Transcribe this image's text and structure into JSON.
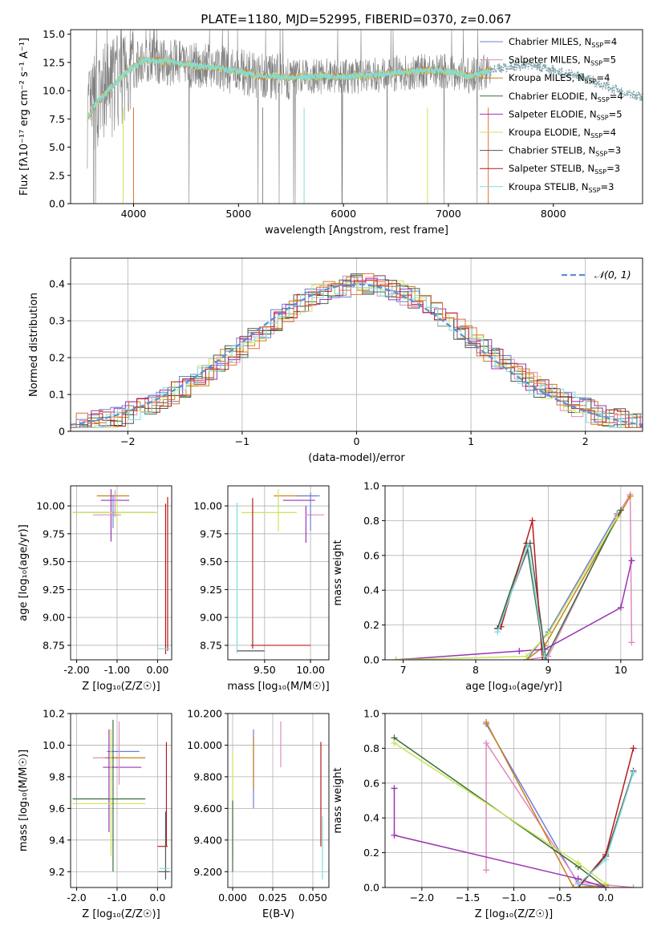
{
  "title": "PLATE=1180, MJD=52995, FIBERID=0370, z=0.067",
  "legend_models": [
    {
      "base": "Chabrier MILES, N",
      "sub": "SSP",
      "suffix": "=4",
      "color": "#6e7fd6"
    },
    {
      "base": "Salpeter MILES, N",
      "sub": "SSP",
      "suffix": "=5",
      "color": "#e08bbf"
    },
    {
      "base": "Kroupa MILES, N",
      "sub": "SSP",
      "suffix": "=4",
      "color": "#c8821a"
    },
    {
      "base": "Chabrier ELODIE, N",
      "sub": "SSP",
      "suffix": "=4",
      "color": "#3c6e3c"
    },
    {
      "base": "Salpeter ELODIE, N",
      "sub": "SSP",
      "suffix": "=5",
      "color": "#9b35b5"
    },
    {
      "base": "Kroupa ELODIE, N",
      "sub": "SSP",
      "suffix": "=4",
      "color": "#c8e65a"
    },
    {
      "base": "Chabrier STELIB, N",
      "sub": "SSP",
      "suffix": "=3",
      "color": "#555555"
    },
    {
      "base": "Salpeter STELIB, N",
      "sub": "SSP",
      "suffix": "=3",
      "color": "#b51c1c"
    },
    {
      "base": "Kroupa STELIB, N",
      "sub": "SSP",
      "suffix": "=3",
      "color": "#80dde0"
    }
  ],
  "chart_data": [
    {
      "type": "line",
      "panel": "spectrum",
      "xlabel": "wavelength [Angstrom, rest frame]",
      "ylabel": "Flux [fλ10⁻¹⁷ erg cm⁻² s⁻¹ A⁻¹]",
      "xlim": [
        3400,
        8850
      ],
      "ylim": [
        0,
        15.4
      ],
      "xticks": [
        4000,
        5000,
        6000,
        7000,
        8000
      ],
      "yticks": [
        0.0,
        2.5,
        5.0,
        7.5,
        10.0,
        12.5,
        15.0
      ],
      "data_color": "#808080",
      "model_color": "#80dde0",
      "continuum": [
        [
          3560,
          7.6
        ],
        [
          3650,
          9.0
        ],
        [
          3800,
          10.4
        ],
        [
          3950,
          11.8
        ],
        [
          4100,
          12.7
        ],
        [
          4300,
          12.6
        ],
        [
          4500,
          12.3
        ],
        [
          4800,
          12.0
        ],
        [
          5000,
          11.7
        ],
        [
          5200,
          11.3
        ],
        [
          5500,
          11.2
        ],
        [
          5800,
          11.3
        ],
        [
          6000,
          11.2
        ],
        [
          6300,
          11.4
        ],
        [
          6560,
          11.6
        ],
        [
          6800,
          11.8
        ],
        [
          7000,
          11.7
        ],
        [
          7200,
          11.3
        ],
        [
          7500,
          12.0
        ],
        [
          7800,
          12.3
        ],
        [
          8000,
          11.8
        ],
        [
          8200,
          11.4
        ],
        [
          8400,
          10.8
        ],
        [
          8600,
          10.1
        ],
        [
          8800,
          9.5
        ]
      ],
      "legend_position": "upper-right"
    },
    {
      "type": "line",
      "panel": "residuals",
      "xlabel": "(data-model)/error",
      "ylabel": "Normed distribution",
      "xlim": [
        -2.5,
        2.5
      ],
      "ylim": [
        0,
        0.47
      ],
      "xticks": [
        -2,
        -1,
        0,
        1,
        2
      ],
      "yticks": [
        0.0,
        0.1,
        0.2,
        0.3,
        0.4
      ],
      "gaussian_label": "𝒩(0, 1)",
      "gaussian_color": "#5b8ed6",
      "grid": true,
      "legend_position": "upper-right"
    },
    {
      "type": "scatter",
      "panel": "age-vs-Z",
      "xlabel": "Z [log₁₀(Z/Z☉)]",
      "ylabel": "age  [log₁₀(age/yr)]",
      "xlim": [
        -2.15,
        0.35
      ],
      "ylim": [
        8.62,
        10.18
      ],
      "xticks": [
        -2,
        -1,
        0
      ],
      "yticks": [
        8.75,
        9.0,
        9.25,
        9.5,
        9.75,
        10.0
      ],
      "grid": true
    },
    {
      "type": "scatter",
      "panel": "age-vs-mass",
      "xlabel": "mass [log₁₀(M/M☉)]",
      "xlim": [
        9.1,
        10.2
      ],
      "ylim": [
        8.62,
        10.18
      ],
      "xticks": [
        9.5,
        10.0
      ],
      "yticks": [
        8.75,
        9.0,
        9.25,
        9.5,
        9.75,
        10.0
      ],
      "grid": true
    },
    {
      "type": "line",
      "panel": "weight-vs-age",
      "xlabel": "age  [log₁₀(age/yr)]",
      "ylabel": "mass weight",
      "xlim": [
        6.75,
        10.3
      ],
      "ylim": [
        0,
        1.0
      ],
      "xticks": [
        7,
        8,
        9,
        10
      ],
      "yticks": [
        0.0,
        0.2,
        0.4,
        0.6,
        0.8,
        1.0
      ],
      "grid": true,
      "series": [
        {
          "color": "#6e7fd6",
          "points": [
            [
              8.7,
              0.0
            ],
            [
              9.0,
              0.16
            ],
            [
              9.95,
              0.84
            ]
          ]
        },
        {
          "color": "#e08bbf",
          "points": [
            [
              8.7,
              0.0
            ],
            [
              9.0,
              0.02
            ],
            [
              9.95,
              0.83
            ],
            [
              10.13,
              0.95
            ],
            [
              10.15,
              0.1
            ]
          ]
        },
        {
          "color": "#c8821a",
          "points": [
            [
              8.7,
              0.0
            ],
            [
              8.95,
              0.08
            ],
            [
              10.13,
              0.94
            ]
          ]
        },
        {
          "color": "#3c6e3c",
          "points": [
            [
              8.3,
              0.18
            ],
            [
              8.7,
              0.67
            ],
            [
              8.95,
              0.0
            ],
            [
              10.0,
              0.86
            ]
          ]
        },
        {
          "color": "#9b35b5",
          "points": [
            [
              6.9,
              0.0
            ],
            [
              8.6,
              0.05
            ],
            [
              8.95,
              0.06
            ],
            [
              10.0,
              0.3
            ],
            [
              10.15,
              0.57
            ]
          ]
        },
        {
          "color": "#c8e65a",
          "points": [
            [
              6.9,
              0.0
            ],
            [
              8.7,
              0.02
            ],
            [
              9.0,
              0.15
            ],
            [
              9.95,
              0.82
            ]
          ]
        },
        {
          "color": "#555555",
          "points": [
            [
              8.3,
              0.18
            ],
            [
              8.75,
              0.67
            ],
            [
              8.97,
              0.0
            ]
          ]
        },
        {
          "color": "#b51c1c",
          "points": [
            [
              8.35,
              0.19
            ],
            [
              8.78,
              0.8
            ],
            [
              8.92,
              0.0
            ]
          ]
        },
        {
          "color": "#80dde0",
          "points": [
            [
              8.3,
              0.16
            ],
            [
              8.72,
              0.66
            ],
            [
              8.95,
              0.02
            ]
          ]
        }
      ]
    },
    {
      "type": "scatter",
      "panel": "mass-vs-Z",
      "xlabel": "Z [log₁₀(Z/Z☉)]",
      "ylabel": "mass [log₁₀(M/M☉)]",
      "xlim": [
        -2.15,
        0.35
      ],
      "ylim": [
        9.1,
        10.2
      ],
      "xticks": [
        -2,
        -1,
        0
      ],
      "yticks": [
        9.2,
        9.4,
        9.6,
        9.8,
        10.0,
        10.2
      ],
      "grid": true
    },
    {
      "type": "scatter",
      "panel": "mass-vs-EBV",
      "xlabel": "E(B-V)",
      "xlim": [
        -0.003,
        0.06
      ],
      "ylim": [
        9.1,
        10.2
      ],
      "xticks": [
        0.0,
        0.025,
        0.05
      ],
      "yticks": [
        9.2,
        9.4,
        9.6,
        9.8,
        10.0,
        10.2
      ],
      "grid": true
    },
    {
      "type": "line",
      "panel": "weight-vs-Z",
      "xlabel": "Z [log₁₀(Z/Z☉)]",
      "ylabel": "mass weight",
      "xlim": [
        -2.4,
        0.4
      ],
      "ylim": [
        0,
        1.0
      ],
      "xticks": [
        -2.0,
        -1.5,
        -1.0,
        -0.5,
        0.0
      ],
      "yticks": [
        0.0,
        0.2,
        0.4,
        0.6,
        0.8,
        1.0
      ],
      "grid": true,
      "series": [
        {
          "color": "#6e7fd6",
          "points": [
            [
              -1.3,
              0.94
            ],
            [
              -0.3,
              0.02
            ],
            [
              0.0,
              0.0
            ]
          ]
        },
        {
          "color": "#e08bbf",
          "points": [
            [
              -1.3,
              0.1
            ],
            [
              -1.3,
              0.83
            ],
            [
              -0.3,
              0.03
            ],
            [
              0.3,
              0.0
            ]
          ]
        },
        {
          "color": "#c8821a",
          "points": [
            [
              -1.3,
              0.95
            ],
            [
              -0.35,
              0.0
            ],
            [
              0.0,
              0.01
            ]
          ]
        },
        {
          "color": "#3c6e3c",
          "points": [
            [
              -2.3,
              0.86
            ],
            [
              -0.3,
              0.12
            ],
            [
              0.0,
              0.0
            ]
          ]
        },
        {
          "color": "#9b35b5",
          "points": [
            [
              -2.3,
              0.57
            ],
            [
              -2.3,
              0.3
            ],
            [
              -0.3,
              0.05
            ],
            [
              0.0,
              0.0
            ]
          ]
        },
        {
          "color": "#c8e65a",
          "points": [
            [
              -2.3,
              0.83
            ],
            [
              -0.3,
              0.14
            ],
            [
              0.0,
              0.02
            ]
          ]
        },
        {
          "color": "#555555",
          "points": [
            [
              -0.3,
              0.0
            ],
            [
              0.0,
              0.18
            ],
            [
              0.3,
              0.67
            ]
          ]
        },
        {
          "color": "#b51c1c",
          "points": [
            [
              -0.3,
              0.0
            ],
            [
              0.0,
              0.19
            ],
            [
              0.3,
              0.8
            ]
          ]
        },
        {
          "color": "#80dde0",
          "points": [
            [
              -0.3,
              0.02
            ],
            [
              0.0,
              0.16
            ],
            [
              0.3,
              0.66
            ]
          ]
        }
      ]
    }
  ]
}
